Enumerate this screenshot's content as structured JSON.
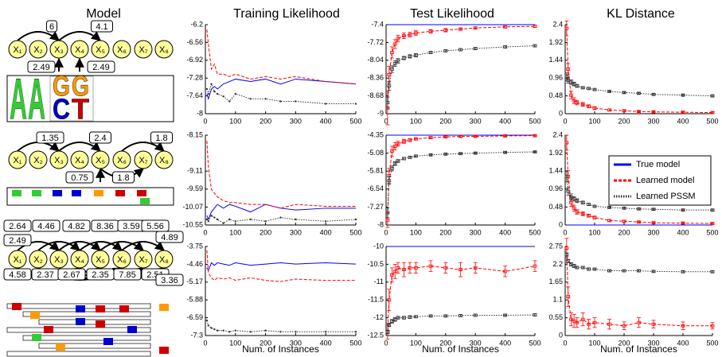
{
  "column_titles": [
    "Model",
    "Training Likelihood",
    "Test Likelihood",
    "KL Distance"
  ],
  "models": [
    {
      "nodes": [
        "X₁",
        "X₂",
        "X₃",
        "X₄",
        "X₅",
        "X₆",
        "X₇",
        "X₈"
      ],
      "edge_labels": [
        6,
        4.1,
        2.49,
        2.49
      ],
      "logo": [
        "A",
        "A",
        "G",
        "G",
        "C",
        "T"
      ]
    },
    {
      "nodes": [
        "X₁",
        "X₂",
        "X₃",
        "X₄",
        "X₅",
        "X₆",
        "X₇",
        "X₈"
      ],
      "edge_labels": [
        1.35,
        2.4,
        1.8,
        0.75,
        1.8
      ]
    },
    {
      "nodes": [
        "X₁",
        "X₂",
        "X₃",
        "X₄",
        "X₅",
        "X₆",
        "X₇",
        "X₈"
      ],
      "edge_labels": [
        2.64,
        4.46,
        4.82,
        8.36,
        3.59,
        5.56,
        2.49,
        4.89,
        4.58,
        2.37,
        2.67,
        2.35,
        7.85,
        2.51,
        3.36
      ]
    }
  ],
  "chart_data": [
    {
      "type": "line",
      "x": [
        5,
        10,
        20,
        30,
        40,
        60,
        80,
        100,
        150,
        200,
        250,
        300,
        400,
        500
      ],
      "xlim": [
        0,
        500
      ],
      "xticks": [
        0,
        100,
        200,
        300,
        400,
        500
      ],
      "ylim": [
        -8,
        -6.2
      ],
      "yticks": [
        -8,
        -7.64,
        -7.28,
        -6.92,
        -6.56,
        -6.2
      ],
      "series": [
        {
          "color": "#0000ff",
          "dash": "solid",
          "values": [
            -7.6,
            -7.7,
            -7.5,
            -7.45,
            -7.5,
            -7.4,
            -7.35,
            -7.3,
            -7.35,
            -7.3,
            -7.4,
            -7.3,
            -7.35,
            -7.4
          ]
        },
        {
          "color": "#ff0000",
          "dash": "dashed",
          "values": [
            -6.3,
            -6.6,
            -7.1,
            -7.0,
            -7.2,
            -7.2,
            -7.25,
            -7.2,
            -7.3,
            -7.25,
            -7.3,
            -7.25,
            -7.35,
            -7.4
          ]
        },
        {
          "color": "#333333",
          "dash": "dotted",
          "values": [
            -7.5,
            -7.6,
            -7.4,
            -7.55,
            -7.6,
            -7.65,
            -7.75,
            -7.6,
            -7.7,
            -7.7,
            -7.75,
            -7.75,
            -7.8,
            -7.8
          ]
        }
      ]
    },
    {
      "type": "line",
      "x": [
        5,
        10,
        20,
        30,
        40,
        60,
        80,
        100,
        150,
        200,
        250,
        300,
        400,
        500
      ],
      "xlim": [
        0,
        500
      ],
      "xticks": [
        0,
        100,
        200,
        300,
        400,
        500
      ],
      "ylim": [
        -9,
        -7.4
      ],
      "yticks": [
        -9,
        -8.68,
        -8.36,
        -8.04,
        -7.72,
        -7.4
      ],
      "series": [
        {
          "color": "#0000ff",
          "dash": "solid",
          "values": [
            -7.4,
            -7.4,
            -7.4,
            -7.4,
            -7.4,
            -7.4,
            -7.4,
            -7.4,
            -7.4,
            -7.4,
            -7.4,
            -7.4,
            -7.4,
            -7.4
          ]
        },
        {
          "color": "#ff0000",
          "dash": "dashed",
          "values": [
            -8.9,
            -8.3,
            -7.9,
            -7.75,
            -7.65,
            -7.6,
            -7.58,
            -7.55,
            -7.52,
            -7.5,
            -7.48,
            -7.46,
            -7.44,
            -7.43
          ],
          "errors": [
            0.3,
            0.15,
            0.1,
            0.08,
            0.06,
            0.05,
            0.04,
            0.04,
            0.03,
            0.03,
            0.02,
            0.02,
            0.02,
            0.02
          ]
        },
        {
          "color": "#333333",
          "dash": "dotted",
          "values": [
            -8.8,
            -8.5,
            -8.2,
            -8.1,
            -8.05,
            -8.0,
            -7.97,
            -7.95,
            -7.9,
            -7.87,
            -7.85,
            -7.83,
            -7.8,
            -7.78
          ],
          "errors": [
            0.1,
            0.08,
            0.06,
            0.05,
            0.04,
            0.03,
            0.03,
            0.03,
            0.02,
            0.02,
            0.02,
            0.02,
            0.02,
            0.02
          ]
        }
      ]
    },
    {
      "type": "line",
      "x": [
        5,
        10,
        20,
        30,
        40,
        60,
        80,
        100,
        150,
        200,
        250,
        300,
        400,
        500
      ],
      "xlim": [
        0,
        500
      ],
      "xticks": [
        0,
        100,
        200,
        300,
        400,
        500
      ],
      "ylim": [
        0,
        2.4
      ],
      "yticks": [
        0,
        0.48,
        0.96,
        1.44,
        1.92,
        2.4
      ],
      "series": [
        {
          "color": "#ff0000",
          "dash": "dashed",
          "values": [
            2.3,
            1.2,
            0.5,
            0.35,
            0.3,
            0.25,
            0.2,
            0.15,
            0.1,
            0.08,
            0.06,
            0.05,
            0.04,
            0.03
          ],
          "errors": [
            0.2,
            0.15,
            0.1,
            0.08,
            0.06,
            0.05,
            0.04,
            0.04,
            0.03,
            0.03,
            0.02,
            0.02,
            0.02,
            0.02
          ]
        },
        {
          "color": "#333333",
          "dash": "dotted",
          "values": [
            1.0,
            0.9,
            0.85,
            0.8,
            0.75,
            0.7,
            0.68,
            0.65,
            0.6,
            0.57,
            0.55,
            0.52,
            0.5,
            0.48
          ],
          "errors": [
            0.1,
            0.08,
            0.06,
            0.05,
            0.04,
            0.03,
            0.03,
            0.03,
            0.02,
            0.02,
            0.02,
            0.02,
            0.02,
            0.02
          ]
        }
      ]
    },
    {
      "type": "line",
      "x": [
        5,
        10,
        20,
        30,
        40,
        60,
        80,
        100,
        150,
        200,
        250,
        300,
        400,
        500
      ],
      "xlim": [
        0,
        500
      ],
      "xticks": [
        0,
        100,
        200,
        300,
        400,
        500
      ],
      "ylim": [
        -10.55,
        -8.15
      ],
      "yticks": [
        -10.55,
        -10.07,
        -9.59,
        -9.11,
        -8.15
      ],
      "series": [
        {
          "color": "#0000ff",
          "dash": "solid",
          "values": [
            -10.3,
            -10.4,
            -10.2,
            -10.1,
            -10.0,
            -10.1,
            -10.0,
            -10.05,
            -10.2,
            -10.0,
            -10.1,
            -10.15,
            -10.1,
            -10.1
          ]
        },
        {
          "color": "#ff0000",
          "dash": "dashed",
          "values": [
            -8.3,
            -9.0,
            -9.6,
            -9.7,
            -9.8,
            -9.9,
            -9.95,
            -9.95,
            -10.0,
            -10.0,
            -10.1,
            -10.0,
            -10.05,
            -10.05
          ]
        },
        {
          "color": "#333333",
          "dash": "dotted",
          "values": [
            -10.4,
            -10.45,
            -10.3,
            -10.35,
            -10.4,
            -10.5,
            -10.4,
            -10.45,
            -10.4,
            -10.45,
            -10.35,
            -10.4,
            -10.45,
            -10.4
          ]
        }
      ]
    },
    {
      "type": "line",
      "x": [
        5,
        10,
        20,
        30,
        40,
        60,
        80,
        100,
        150,
        200,
        250,
        300,
        400,
        500
      ],
      "xlim": [
        0,
        500
      ],
      "xticks": [
        0,
        100,
        200,
        300,
        400,
        500
      ],
      "ylim": [
        -8,
        -4.35
      ],
      "yticks": [
        -8,
        -7.27,
        -6.54,
        -5.81,
        -5.08,
        -4.35
      ],
      "series": [
        {
          "color": "#0000ff",
          "dash": "solid",
          "values": [
            -4.35,
            -4.35,
            -4.35,
            -4.35,
            -4.35,
            -4.35,
            -4.35,
            -4.35,
            -4.35,
            -4.35,
            -4.35,
            -4.35,
            -4.35,
            -4.35
          ]
        },
        {
          "color": "#ff0000",
          "dash": "dashed",
          "values": [
            -7.8,
            -6.0,
            -5.0,
            -4.8,
            -4.7,
            -4.6,
            -4.55,
            -4.5,
            -4.45,
            -4.42,
            -4.4,
            -4.4,
            -4.38,
            -4.37
          ],
          "errors": [
            0.3,
            0.3,
            0.2,
            0.15,
            0.1,
            0.08,
            0.06,
            0.05,
            0.04,
            0.03,
            0.03,
            0.02,
            0.02,
            0.02
          ]
        },
        {
          "color": "#333333",
          "dash": "dotted",
          "values": [
            -7.5,
            -6.2,
            -5.7,
            -5.5,
            -5.4,
            -5.3,
            -5.25,
            -5.2,
            -5.15,
            -5.12,
            -5.1,
            -5.08,
            -5.05,
            -5.03
          ],
          "errors": [
            0.2,
            0.15,
            0.1,
            0.08,
            0.06,
            0.05,
            0.04,
            0.04,
            0.03,
            0.03,
            0.02,
            0.02,
            0.02,
            0.02
          ]
        }
      ]
    },
    {
      "type": "line",
      "x": [
        5,
        10,
        20,
        30,
        40,
        60,
        80,
        100,
        150,
        200,
        250,
        300,
        400,
        500
      ],
      "xlim": [
        0,
        500
      ],
      "xticks": [
        0,
        100,
        200,
        300,
        400,
        500
      ],
      "ylim": [
        0,
        2.4
      ],
      "yticks": [
        0,
        0.48,
        0.96,
        1.44,
        1.92,
        2.4
      ],
      "legend": "upper right",
      "series": [
        {
          "name": "True model",
          "color": "#0000ff",
          "dash": "solid",
          "values": [
            0,
            0,
            0,
            0,
            0,
            0,
            0,
            0,
            0,
            0,
            0,
            0,
            0,
            0
          ]
        },
        {
          "name": "Learned model",
          "color": "#ff0000",
          "dash": "dashed",
          "values": [
            2.2,
            1.3,
            0.6,
            0.45,
            0.35,
            0.3,
            0.25,
            0.2,
            0.12,
            0.1,
            0.08,
            0.06,
            0.05,
            0.04
          ],
          "errors": [
            0.2,
            0.15,
            0.1,
            0.08,
            0.06,
            0.05,
            0.04,
            0.04,
            0.03,
            0.03,
            0.02,
            0.02,
            0.02,
            0.02
          ]
        },
        {
          "name": "Learned PSSM",
          "color": "#333333",
          "dash": "dotted",
          "values": [
            1.3,
            0.9,
            0.75,
            0.7,
            0.65,
            0.6,
            0.55,
            0.5,
            0.47,
            0.45,
            0.43,
            0.42,
            0.4,
            0.4
          ],
          "errors": [
            0.15,
            0.1,
            0.08,
            0.06,
            0.05,
            0.04,
            0.03,
            0.03,
            0.02,
            0.02,
            0.02,
            0.02,
            0.02,
            0.02
          ]
        }
      ]
    },
    {
      "type": "line",
      "x": [
        5,
        10,
        20,
        30,
        40,
        60,
        80,
        100,
        150,
        200,
        250,
        300,
        400,
        500
      ],
      "xlim": [
        0,
        500
      ],
      "xticks": [
        0,
        100,
        200,
        300,
        400,
        500
      ],
      "ylim": [
        -7.3,
        -3.75
      ],
      "yticks": [
        -7.3,
        -6.59,
        -5.88,
        -5.17,
        -4.46,
        -3.75
      ],
      "xlabel": "Num. of Instances",
      "series": [
        {
          "color": "#0000ff",
          "dash": "solid",
          "values": [
            -4.6,
            -4.7,
            -4.4,
            -4.5,
            -4.4,
            -4.45,
            -4.5,
            -4.4,
            -4.5,
            -4.45,
            -4.4,
            -4.45,
            -4.4,
            -4.45
          ]
        },
        {
          "color": "#ff0000",
          "dash": "dashed",
          "values": [
            -3.9,
            -4.8,
            -5.0,
            -5.1,
            -5.0,
            -5.05,
            -5.0,
            -5.1,
            -5.0,
            -5.1,
            -5.15,
            -5.05,
            -5.1,
            -5.1
          ]
        },
        {
          "color": "#333333",
          "dash": "dotted",
          "values": [
            -6.7,
            -6.9,
            -7.0,
            -7.05,
            -7.1,
            -7.1,
            -7.15,
            -7.1,
            -7.15,
            -7.1,
            -7.15,
            -7.15,
            -7.15,
            -7.15
          ]
        }
      ]
    },
    {
      "type": "line",
      "x": [
        5,
        10,
        20,
        30,
        40,
        60,
        80,
        100,
        150,
        200,
        250,
        300,
        400,
        500
      ],
      "xlim": [
        0,
        500
      ],
      "xticks": [
        0,
        100,
        200,
        300,
        400,
        500
      ],
      "ylim": [
        -12.5,
        -10
      ],
      "yticks": [
        -12.5,
        -12,
        -11.5,
        -11,
        -10.5,
        -10
      ],
      "xlabel": "Num. of Instances",
      "series": [
        {
          "color": "#0000ff",
          "dash": "solid",
          "values": [
            -10,
            -10,
            -10,
            -10,
            -10,
            -10,
            -10,
            -10,
            -10,
            -10,
            -10,
            -10,
            -10,
            -10
          ]
        },
        {
          "color": "#ff0000",
          "dash": "dashed",
          "values": [
            -12.4,
            -11.5,
            -10.8,
            -10.7,
            -10.6,
            -10.65,
            -10.6,
            -10.6,
            -10.55,
            -10.6,
            -10.65,
            -10.6,
            -10.7,
            -10.55
          ],
          "errors": [
            0.2,
            0.3,
            0.2,
            0.2,
            0.15,
            0.2,
            0.15,
            0.15,
            0.15,
            0.15,
            0.2,
            0.15,
            0.15,
            0.15
          ]
        },
        {
          "color": "#333333",
          "dash": "dotted",
          "values": [
            -12.4,
            -12.2,
            -12.1,
            -12.05,
            -12.0,
            -12.0,
            -11.98,
            -11.97,
            -11.95,
            -11.95,
            -11.94,
            -11.93,
            -11.93,
            -11.92
          ],
          "errors": [
            0.05,
            0.05,
            0.05,
            0.05,
            0.04,
            0.04,
            0.04,
            0.03,
            0.03,
            0.03,
            0.03,
            0.03,
            0.03,
            0.03
          ]
        }
      ]
    },
    {
      "type": "line",
      "x": [
        5,
        10,
        20,
        30,
        40,
        60,
        80,
        100,
        150,
        200,
        250,
        300,
        400,
        500
      ],
      "xlim": [
        0,
        500
      ],
      "xticks": [
        0,
        100,
        200,
        300,
        400,
        500
      ],
      "ylim": [
        0,
        2.75
      ],
      "yticks": [
        0,
        0.55,
        1.1,
        1.65,
        2.2,
        2.75
      ],
      "xlabel": "Num. of Instances",
      "series": [
        {
          "color": "#ff0000",
          "dash": "dashed",
          "values": [
            2.7,
            1.2,
            0.5,
            0.45,
            0.4,
            0.5,
            0.35,
            0.4,
            0.35,
            0.3,
            0.4,
            0.35,
            0.3,
            0.3
          ],
          "errors": [
            0.3,
            0.3,
            0.2,
            0.2,
            0.15,
            0.2,
            0.15,
            0.15,
            0.15,
            0.12,
            0.15,
            0.12,
            0.12,
            0.1
          ]
        },
        {
          "color": "#333333",
          "dash": "dotted",
          "values": [
            2.5,
            2.3,
            2.2,
            2.15,
            2.1,
            2.1,
            2.05,
            2.05,
            2.0,
            2.0,
            2.0,
            1.98,
            1.97,
            1.97
          ],
          "errors": [
            0.05,
            0.05,
            0.05,
            0.05,
            0.04,
            0.04,
            0.04,
            0.03,
            0.03,
            0.03,
            0.03,
            0.03,
            0.03,
            0.03
          ]
        }
      ]
    }
  ]
}
